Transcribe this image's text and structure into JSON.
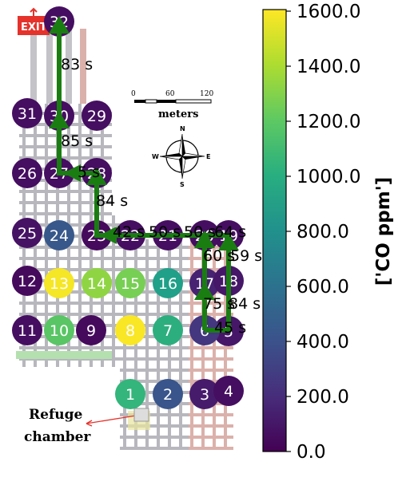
{
  "exit_sign": "EXIT",
  "scale_bar": {
    "ticks": [
      "0",
      "60",
      "120"
    ],
    "unit": "meters"
  },
  "compass": {
    "n": "N",
    "s": "S",
    "e": "E",
    "w": "W"
  },
  "refuge_label": [
    "Refuge",
    "chamber"
  ],
  "colorbar": {
    "title": "['CO  ppm']",
    "ticks": [
      "1600.0",
      "1400.0",
      "1200.0",
      "1000.0",
      "800.0",
      "600.0",
      "400.0",
      "200.0",
      "0.0"
    ],
    "colormap": "viridis",
    "range": [
      0,
      1600
    ]
  },
  "nodes": [
    {
      "id": "1",
      "value": 1050
    },
    {
      "id": "2",
      "value": 420
    },
    {
      "id": "3",
      "value": 120
    },
    {
      "id": "4",
      "value": 60
    },
    {
      "id": "5",
      "value": 100
    },
    {
      "id": "6",
      "value": 250
    },
    {
      "id": "7",
      "value": 1000
    },
    {
      "id": "8",
      "value": 1590
    },
    {
      "id": "9",
      "value": 40
    },
    {
      "id": "10",
      "value": 1180
    },
    {
      "id": "11",
      "value": 60
    },
    {
      "id": "12",
      "value": 40
    },
    {
      "id": "13",
      "value": 1580
    },
    {
      "id": "14",
      "value": 1330
    },
    {
      "id": "15",
      "value": 1270
    },
    {
      "id": "16",
      "value": 900
    },
    {
      "id": "17",
      "value": 150
    },
    {
      "id": "18",
      "value": 100
    },
    {
      "id": "19",
      "value": 60
    },
    {
      "id": "20",
      "value": 60
    },
    {
      "id": "21",
      "value": 60
    },
    {
      "id": "22",
      "value": 60
    },
    {
      "id": "23",
      "value": 40
    },
    {
      "id": "24",
      "value": 440
    },
    {
      "id": "25",
      "value": 80
    },
    {
      "id": "26",
      "value": 60
    },
    {
      "id": "27",
      "value": 60
    },
    {
      "id": "28",
      "value": 60
    },
    {
      "id": "29",
      "value": 60
    },
    {
      "id": "30",
      "value": 60
    },
    {
      "id": "31",
      "value": 60
    },
    {
      "id": "32",
      "value": 60
    }
  ],
  "segment_times": [
    "83 s",
    "85 s",
    "5 s",
    "84 s",
    "42 s",
    "50 s",
    "50 s",
    "64 s",
    "60 s",
    "59 s",
    "75 s",
    "84 s",
    "45 s"
  ]
}
